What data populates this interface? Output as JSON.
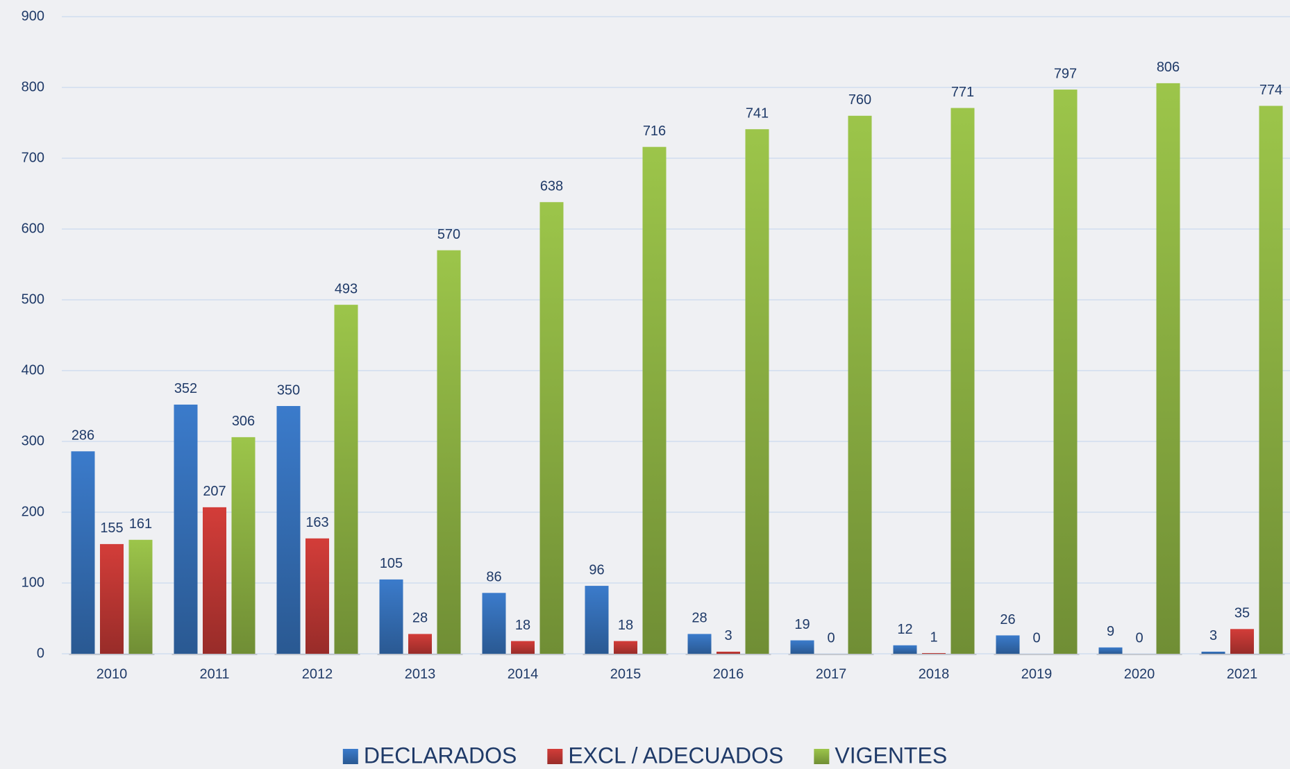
{
  "chart_data": {
    "type": "bar",
    "categories": [
      "2010",
      "2011",
      "2012",
      "2013",
      "2014",
      "2015",
      "2016",
      "2017",
      "2018",
      "2019",
      "2020",
      "2021"
    ],
    "series": [
      {
        "name": "DECLARADOS",
        "color": "#3b7bcb",
        "values": [
          286,
          352,
          350,
          105,
          86,
          96,
          28,
          19,
          12,
          26,
          9,
          3
        ]
      },
      {
        "name": "EXCL / ADECUADOS",
        "color": "#d33d39",
        "values": [
          155,
          207,
          163,
          28,
          18,
          18,
          3,
          0,
          1,
          0,
          0,
          35
        ]
      },
      {
        "name": "VIGENTES",
        "color": "#9cc54a",
        "values": [
          161,
          306,
          493,
          570,
          638,
          716,
          741,
          760,
          771,
          797,
          806,
          774
        ]
      }
    ],
    "ylim": [
      0,
      900
    ],
    "yticks": [
      0,
      100,
      200,
      300,
      400,
      500,
      600,
      700,
      800,
      900
    ],
    "grid": true,
    "legend": "bottom"
  }
}
